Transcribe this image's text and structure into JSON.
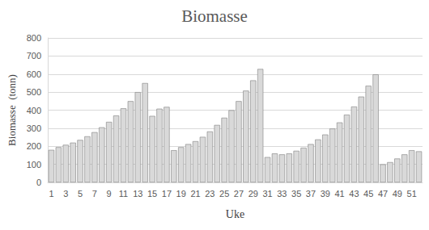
{
  "chart_data": {
    "type": "bar",
    "title": "Biomasse",
    "x_label": "Uke",
    "y_label": "Biomasse  (tonn)",
    "categories": [
      "1",
      null,
      "3",
      null,
      "5",
      null,
      "7",
      null,
      "9",
      null,
      "11",
      null,
      "13",
      null,
      "15",
      null,
      "17",
      null,
      "19",
      null,
      "21",
      null,
      "23",
      null,
      "25",
      null,
      "27",
      null,
      "29",
      null,
      "31",
      null,
      "33",
      null,
      "35",
      null,
      "37",
      null,
      "39",
      null,
      "41",
      null,
      "43",
      null,
      "45",
      null,
      "47",
      null,
      "49",
      null,
      "51",
      null
    ],
    "values": [
      180,
      195,
      208,
      220,
      235,
      255,
      278,
      305,
      335,
      370,
      410,
      450,
      500,
      550,
      368,
      408,
      418,
      178,
      195,
      212,
      228,
      252,
      282,
      318,
      358,
      400,
      450,
      508,
      565,
      628,
      140,
      160,
      155,
      160,
      175,
      192,
      212,
      238,
      265,
      298,
      332,
      375,
      420,
      475,
      535,
      598,
      100,
      112,
      132,
      155,
      178,
      172
    ],
    "color": "#d9d9d9",
    "ylim": [
      0,
      800
    ],
    "yticks": [
      0,
      100,
      200,
      300,
      400,
      500,
      600,
      700,
      800
    ],
    "grid": true
  }
}
